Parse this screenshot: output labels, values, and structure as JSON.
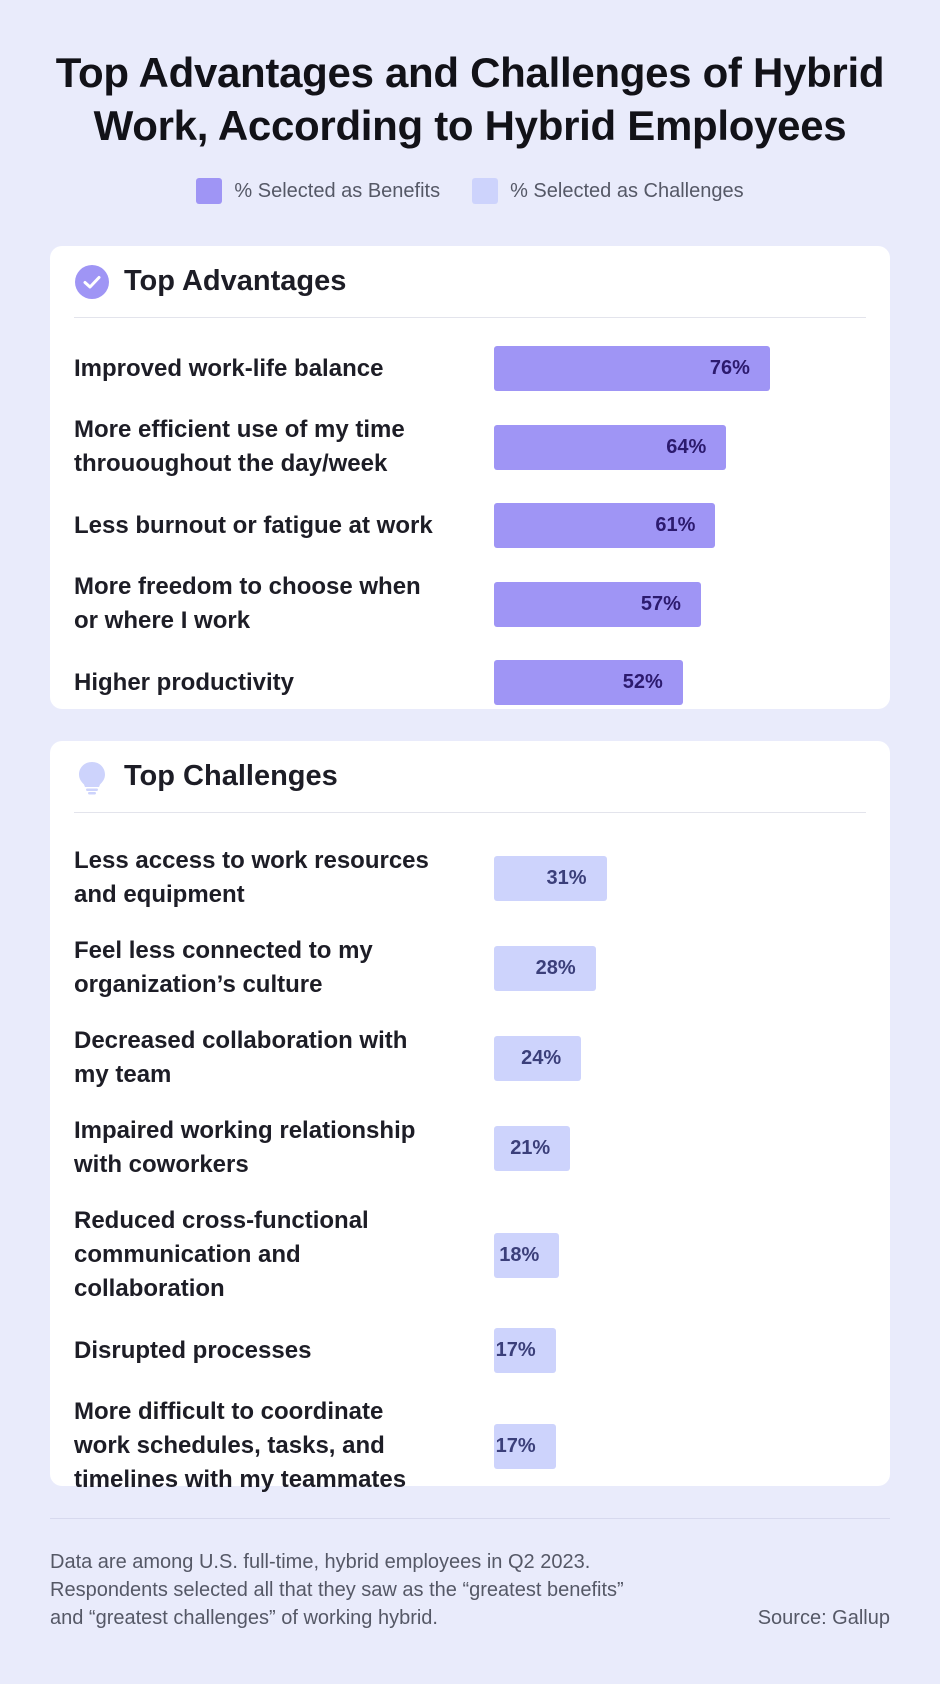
{
  "title": {
    "line1": "Top Advantages and Challenges of Hybrid",
    "line2": "Work, According to Hybrid Employees"
  },
  "legend": {
    "benefits": "% Selected as Benefits",
    "challenges": "% Selected as Challenges"
  },
  "colors": {
    "benefit_bar": "#9f95f5",
    "challenge_bar": "#cdd3fc",
    "background": "#e9ebfb"
  },
  "advantages": {
    "heading": "Top Advantages",
    "icon": "check-circle-icon"
  },
  "challenges": {
    "heading": "Top Challenges",
    "icon": "lightbulb-icon"
  },
  "chart_data": [
    {
      "type": "bar",
      "orientation": "horizontal",
      "title": "Top Advantages",
      "series_name": "% Selected as Benefits",
      "categories": [
        [
          "Improved work-life balance"
        ],
        [
          "More efficient use of my time",
          "thrououghout the day/week"
        ],
        [
          "Less burnout or fatigue at work"
        ],
        [
          "More freedom to choose when",
          "or where I work"
        ],
        [
          "Higher productivity"
        ]
      ],
      "values": [
        76,
        64,
        61,
        57,
        52
      ],
      "labels": [
        "76%",
        "64%",
        "61%",
        "57%",
        "52%"
      ],
      "xlim": [
        0,
        100
      ]
    },
    {
      "type": "bar",
      "orientation": "horizontal",
      "title": "Top Challenges",
      "series_name": "% Selected as Challenges",
      "categories": [
        [
          "Less access to work resources",
          "and equipment"
        ],
        [
          "Feel less connected to my",
          "organization’s culture"
        ],
        [
          "Decreased collaboration with",
          "my team"
        ],
        [
          "Impaired working relationship",
          "with coworkers"
        ],
        [
          "Reduced cross-functional",
          "communication and",
          "collaboration"
        ],
        [
          "Disrupted processes"
        ],
        [
          "More difficult to coordinate",
          "work schedules, tasks, and",
          "timelines with my teammates"
        ]
      ],
      "values": [
        31,
        28,
        24,
        21,
        18,
        17,
        17
      ],
      "labels": [
        "31%",
        "28%",
        "24%",
        "21%",
        "18%",
        "17%",
        "17%"
      ],
      "xlim": [
        0,
        100
      ]
    }
  ],
  "footer": {
    "note_line1": "Data are among U.S. full-time, hybrid employees in Q2 2023.",
    "note_line2": "Respondents selected all that they saw as the “greatest benefits”",
    "note_line3": "and “greatest challenges” of working hybrid.",
    "source": "Source: Gallup"
  }
}
